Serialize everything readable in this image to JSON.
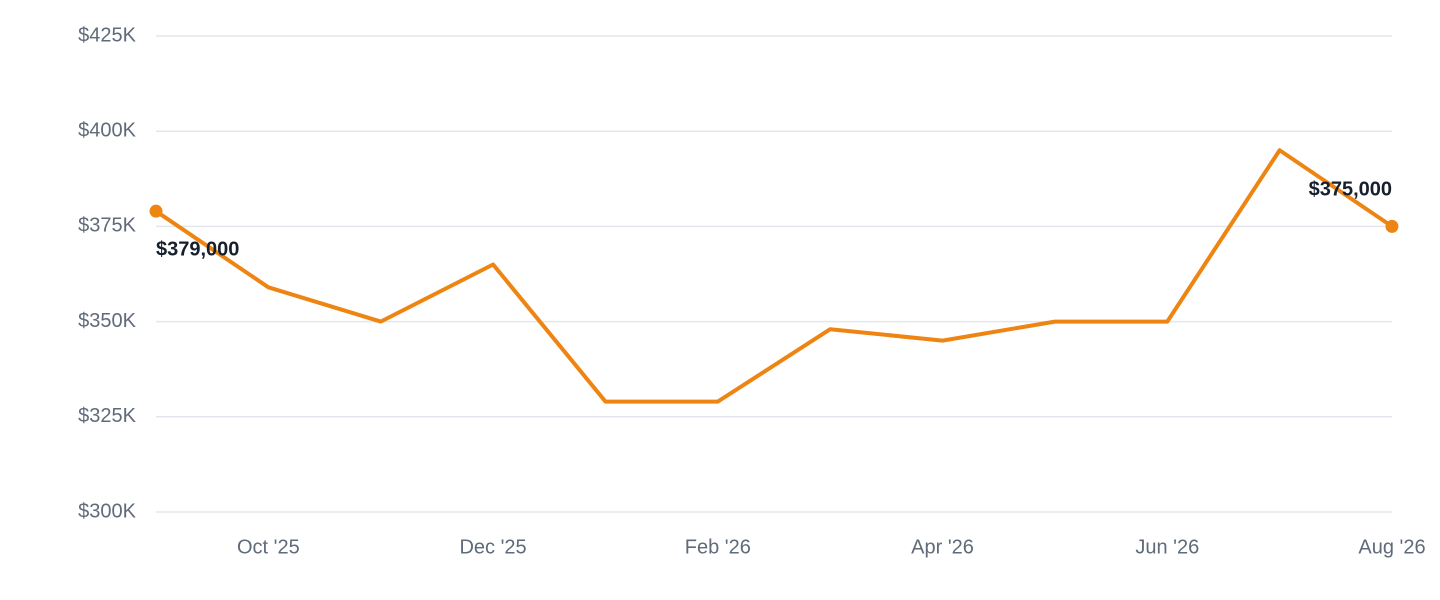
{
  "chart_data": {
    "type": "line",
    "categories": [
      null,
      "Oct '25",
      null,
      "Dec '25",
      null,
      "Feb '26",
      null,
      "Apr '26",
      null,
      "Jun '26",
      null,
      "Aug '26"
    ],
    "values": [
      379000,
      359000,
      350000,
      365000,
      329000,
      329000,
      348000,
      345000,
      350000,
      350000,
      395000,
      375000
    ],
    "value_labels": [
      "$379,000",
      null,
      null,
      null,
      null,
      null,
      null,
      null,
      null,
      null,
      null,
      "$375,000"
    ],
    "color": "#ee8512",
    "ylim": [
      300000,
      425000
    ],
    "yticks": [
      {
        "value": 300000,
        "label": "$300K"
      },
      {
        "value": 325000,
        "label": "$325K"
      },
      {
        "value": 350000,
        "label": "$350K"
      },
      {
        "value": 375000,
        "label": "$375K"
      },
      {
        "value": 400000,
        "label": "$400K"
      },
      {
        "value": 425000,
        "label": "$425K"
      }
    ],
    "grid": true
  }
}
